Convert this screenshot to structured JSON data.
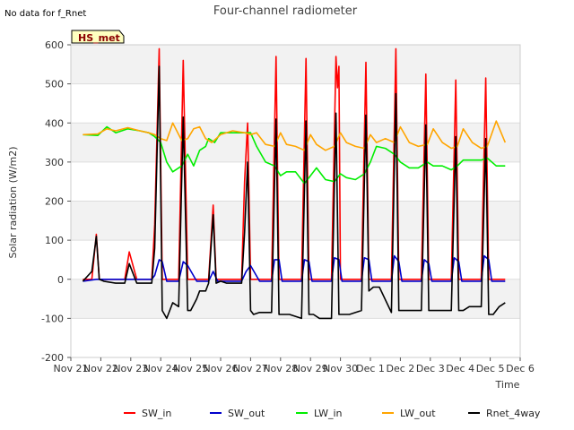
{
  "chart_data": {
    "type": "line",
    "title": "Four-channel radiometer",
    "note": "No data for f_Rnet",
    "badge": "HS_met",
    "xlabel": "Time",
    "ylabel": "Solar radiation (W/m2)",
    "ylim": [
      -200,
      600
    ],
    "xlim": [
      0,
      15
    ],
    "y_ticks": [
      -200,
      -100,
      0,
      100,
      200,
      300,
      400,
      500,
      600
    ],
    "x_ticks": [
      {
        "pos": 0,
        "label": "Nov 21"
      },
      {
        "pos": 1,
        "label": "Nov 22"
      },
      {
        "pos": 2,
        "label": "Nov 23"
      },
      {
        "pos": 3,
        "label": "Nov 24"
      },
      {
        "pos": 4,
        "label": "Nov 25"
      },
      {
        "pos": 5,
        "label": "Nov 26"
      },
      {
        "pos": 6,
        "label": "Nov 27"
      },
      {
        "pos": 7,
        "label": "Nov 28"
      },
      {
        "pos": 8,
        "label": "Nov 29"
      },
      {
        "pos": 9,
        "label": "Nov 30"
      },
      {
        "pos": 10,
        "label": "Dec 1"
      },
      {
        "pos": 11,
        "label": "Dec 2"
      },
      {
        "pos": 12,
        "label": "Dec 3"
      },
      {
        "pos": 13,
        "label": "Dec 4"
      },
      {
        "pos": 14,
        "label": "Dec 5"
      },
      {
        "pos": 15,
        "label": "Dec 6"
      }
    ],
    "x_unit": "days since Nov 21",
    "grid": true,
    "legend_position": "bottom",
    "series": [
      {
        "name": "SW_in",
        "color": "#ff0000",
        "x": [
          0.4,
          0.7,
          0.85,
          0.95,
          1.1,
          1.5,
          1.8,
          1.95,
          2.2,
          2.7,
          2.8,
          2.95,
          3.05,
          3.2,
          3.3,
          3.6,
          3.75,
          3.9,
          4.0,
          4.2,
          4.3,
          4.6,
          4.75,
          4.85,
          5.0,
          5.2,
          5.3,
          5.7,
          5.8,
          5.9,
          6.0,
          6.1,
          6.3,
          6.7,
          6.85,
          6.95,
          7.1,
          7.3,
          7.7,
          7.85,
          7.95,
          8.1,
          8.3,
          8.7,
          8.85,
          8.9,
          8.95,
          9.0,
          9.1,
          9.3,
          9.7,
          9.85,
          9.95,
          10.1,
          10.3,
          10.7,
          10.85,
          10.95,
          11.1,
          11.3,
          11.7,
          11.85,
          11.95,
          12.1,
          12.3,
          12.7,
          12.85,
          12.95,
          13.1,
          13.3,
          13.7,
          13.85,
          13.95,
          14.1,
          14.3,
          14.5
        ],
        "y": [
          0,
          0,
          115,
          0,
          0,
          0,
          0,
          70,
          0,
          0,
          140,
          590,
          0,
          0,
          0,
          0,
          560,
          0,
          0,
          0,
          0,
          0,
          190,
          0,
          0,
          0,
          0,
          0,
          250,
          400,
          0,
          0,
          0,
          0,
          570,
          0,
          0,
          0,
          0,
          565,
          0,
          0,
          0,
          0,
          570,
          490,
          545,
          0,
          0,
          0,
          0,
          555,
          0,
          0,
          0,
          0,
          590,
          0,
          0,
          0,
          0,
          525,
          0,
          0,
          0,
          0,
          510,
          0,
          0,
          0,
          0,
          515,
          0,
          0,
          0,
          0
        ]
      },
      {
        "name": "SW_out",
        "color": "#0000cc",
        "x": [
          0.4,
          0.85,
          1.1,
          1.8,
          1.95,
          2.2,
          2.7,
          2.8,
          2.95,
          3.05,
          3.2,
          3.6,
          3.75,
          3.9,
          4.2,
          4.6,
          4.75,
          4.9,
          5.2,
          5.7,
          5.85,
          6.0,
          6.3,
          6.7,
          6.8,
          6.95,
          7.05,
          7.3,
          7.7,
          7.8,
          7.95,
          8.05,
          8.3,
          8.7,
          8.8,
          8.95,
          9.05,
          9.3,
          9.7,
          9.8,
          9.95,
          10.05,
          10.3,
          10.7,
          10.8,
          10.95,
          11.05,
          11.3,
          11.7,
          11.8,
          11.95,
          12.05,
          12.3,
          12.7,
          12.8,
          12.95,
          13.05,
          13.3,
          13.7,
          13.8,
          13.95,
          14.05,
          14.3,
          14.5
        ],
        "y": [
          -5,
          0,
          0,
          0,
          0,
          0,
          0,
          10,
          50,
          45,
          -5,
          -5,
          45,
          35,
          -5,
          -5,
          20,
          -5,
          -5,
          -5,
          20,
          35,
          -5,
          -5,
          50,
          50,
          -5,
          -5,
          -5,
          50,
          45,
          -5,
          -5,
          -5,
          55,
          50,
          -5,
          -5,
          -5,
          55,
          50,
          -5,
          -5,
          -5,
          60,
          45,
          -5,
          -5,
          -5,
          50,
          40,
          -5,
          -5,
          -5,
          55,
          45,
          -5,
          -5,
          -5,
          60,
          50,
          -5,
          -5,
          -5
        ]
      },
      {
        "name": "LW_in",
        "color": "#00ee00",
        "x": [
          0.4,
          0.9,
          1.2,
          1.5,
          1.9,
          2.3,
          2.6,
          2.8,
          3.0,
          3.2,
          3.4,
          3.7,
          3.9,
          4.1,
          4.3,
          4.5,
          4.6,
          4.8,
          5.0,
          5.4,
          5.8,
          6.0,
          6.2,
          6.5,
          6.8,
          7.0,
          7.2,
          7.5,
          7.8,
          8.0,
          8.2,
          8.5,
          8.8,
          9.0,
          9.2,
          9.5,
          9.8,
          10.0,
          10.2,
          10.5,
          10.8,
          11.0,
          11.3,
          11.6,
          11.9,
          12.1,
          12.4,
          12.7,
          12.9,
          13.1,
          13.4,
          13.7,
          13.9,
          14.2,
          14.5
        ],
        "y": [
          370,
          368,
          390,
          375,
          385,
          380,
          375,
          365,
          350,
          300,
          275,
          290,
          320,
          290,
          330,
          340,
          360,
          350,
          375,
          375,
          375,
          375,
          340,
          300,
          290,
          265,
          275,
          275,
          245,
          265,
          285,
          255,
          250,
          270,
          260,
          255,
          270,
          300,
          340,
          335,
          320,
          300,
          285,
          285,
          300,
          290,
          290,
          280,
          290,
          305,
          305,
          305,
          310,
          290,
          290
        ]
      },
      {
        "name": "LW_out",
        "color": "#ffa500",
        "x": [
          0.4,
          0.9,
          1.2,
          1.5,
          1.9,
          2.3,
          2.6,
          2.8,
          3.0,
          3.2,
          3.4,
          3.7,
          3.9,
          4.1,
          4.3,
          4.5,
          4.7,
          5.0,
          5.4,
          5.8,
          6.0,
          6.2,
          6.5,
          6.8,
          7.0,
          7.2,
          7.5,
          7.8,
          8.0,
          8.2,
          8.5,
          8.8,
          9.0,
          9.2,
          9.5,
          9.8,
          10.0,
          10.2,
          10.5,
          10.8,
          11.0,
          11.3,
          11.6,
          11.9,
          12.1,
          12.4,
          12.7,
          12.9,
          13.1,
          13.4,
          13.7,
          13.9,
          14.2,
          14.5
        ],
        "y": [
          370,
          372,
          385,
          380,
          388,
          380,
          375,
          370,
          360,
          355,
          400,
          355,
          360,
          385,
          390,
          360,
          350,
          370,
          380,
          375,
          370,
          375,
          345,
          340,
          375,
          345,
          340,
          330,
          370,
          345,
          330,
          340,
          375,
          350,
          340,
          335,
          370,
          350,
          360,
          350,
          390,
          350,
          340,
          345,
          385,
          350,
          335,
          340,
          385,
          350,
          335,
          340,
          405,
          350
        ]
      },
      {
        "name": "Rnet_4way",
        "color": "#000000",
        "x": [
          0.4,
          0.7,
          0.85,
          0.95,
          1.1,
          1.5,
          1.8,
          1.95,
          2.2,
          2.7,
          2.8,
          2.95,
          3.05,
          3.2,
          3.4,
          3.6,
          3.75,
          3.9,
          4.0,
          4.2,
          4.3,
          4.5,
          4.6,
          4.75,
          4.85,
          5.0,
          5.2,
          5.3,
          5.5,
          5.7,
          5.8,
          5.9,
          6.0,
          6.1,
          6.3,
          6.7,
          6.85,
          6.95,
          7.1,
          7.3,
          7.7,
          7.85,
          7.95,
          8.1,
          8.3,
          8.7,
          8.85,
          8.95,
          9.1,
          9.3,
          9.7,
          9.85,
          9.95,
          10.1,
          10.3,
          10.7,
          10.85,
          10.95,
          11.1,
          11.3,
          11.7,
          11.85,
          11.95,
          12.1,
          12.3,
          12.7,
          12.85,
          12.95,
          13.1,
          13.3,
          13.7,
          13.85,
          13.95,
          14.1,
          14.3,
          14.5
        ],
        "y": [
          -5,
          20,
          110,
          0,
          -5,
          -10,
          -10,
          40,
          -10,
          -10,
          80,
          545,
          -80,
          -100,
          -60,
          -70,
          415,
          -80,
          -80,
          -50,
          -30,
          -30,
          -10,
          165,
          -10,
          -5,
          -10,
          -10,
          -10,
          -10,
          120,
          300,
          -80,
          -90,
          -85,
          -85,
          410,
          -90,
          -90,
          -90,
          -100,
          405,
          -90,
          -90,
          -100,
          -100,
          425,
          -90,
          -90,
          -90,
          -80,
          420,
          -30,
          -20,
          -20,
          -85,
          475,
          -80,
          -80,
          -80,
          -80,
          395,
          -80,
          -80,
          -80,
          -80,
          365,
          -80,
          -80,
          -70,
          -70,
          360,
          -90,
          -90,
          -70,
          -60
        ]
      }
    ]
  }
}
